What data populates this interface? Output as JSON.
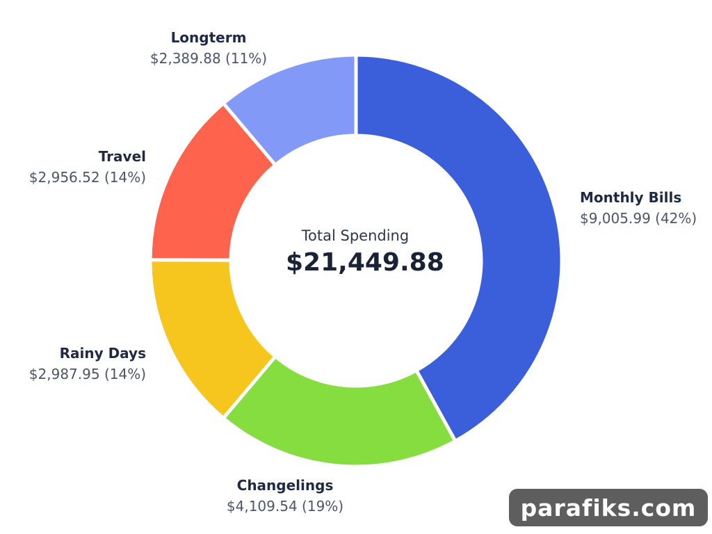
{
  "chart_data": {
    "type": "pie",
    "donut": true,
    "center_label": "Total Spending",
    "center_value": "$21,449.88",
    "slices": [
      {
        "name": "Monthly Bills",
        "value": 9005.99,
        "display": "$9,005.99 (42%)",
        "color": "#3b5fdb"
      },
      {
        "name": "Changelings",
        "value": 4109.54,
        "display": "$4,109.54 (19%)",
        "color": "#86dd40"
      },
      {
        "name": "Rainy Days",
        "value": 2987.95,
        "display": "$2,987.95 (14%)",
        "color": "#f6c51e"
      },
      {
        "name": "Travel",
        "value": 2956.52,
        "display": "$2,956.52 (14%)",
        "color": "#fe644d"
      },
      {
        "name": "Longterm",
        "value": 2389.88,
        "display": "$2,389.88 (11%)",
        "color": "#8399f8"
      }
    ]
  },
  "watermark": "parafiks.com"
}
